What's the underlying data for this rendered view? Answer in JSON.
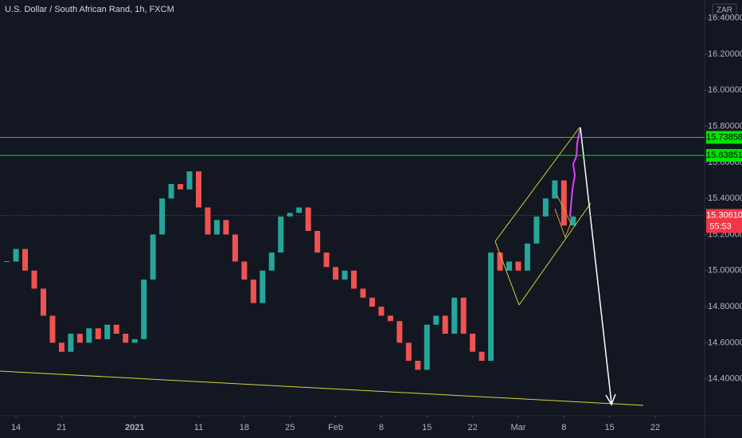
{
  "chart_data": {
    "type": "candlestick",
    "title": "U.S. Dollar / South African Rand, 1h, FXCM",
    "currency": "ZAR",
    "up_color": "#26a69a",
    "down_color": "#ef5350",
    "x": [
      -1,
      0,
      1,
      2,
      3,
      4,
      5,
      6,
      7,
      8,
      9,
      10,
      11,
      12,
      13,
      14,
      15,
      16,
      17,
      18,
      19,
      20,
      21,
      22,
      23,
      24,
      25,
      26,
      27,
      28,
      29,
      30,
      31,
      32,
      33,
      34,
      35,
      36,
      37,
      38,
      39,
      40,
      41,
      42,
      43,
      44,
      45,
      46,
      47,
      48,
      49,
      50,
      51,
      52,
      53,
      54,
      55,
      56,
      57,
      58,
      59,
      60,
      61
    ],
    "values": [
      15.05,
      15.12,
      15.0,
      14.9,
      14.75,
      14.6,
      14.55,
      14.65,
      14.6,
      14.68,
      14.62,
      14.7,
      14.65,
      14.6,
      14.62,
      14.95,
      15.2,
      15.4,
      15.48,
      15.45,
      15.55,
      15.35,
      15.2,
      15.28,
      15.2,
      15.05,
      14.95,
      14.82,
      15.0,
      15.1,
      15.3,
      15.32,
      15.35,
      15.22,
      15.1,
      15.02,
      14.95,
      15.0,
      14.9,
      14.85,
      14.8,
      14.75,
      14.72,
      14.6,
      14.5,
      14.45,
      14.7,
      14.75,
      14.65,
      14.85,
      14.65,
      14.55,
      14.5,
      15.1,
      15.0,
      15.05,
      15.0,
      15.15,
      15.3,
      15.4,
      15.5,
      15.25,
      15.3
    ],
    "xlim": [
      -1.75,
      75.4
    ],
    "xticks": [
      {
        "value": 0,
        "label": "14"
      },
      {
        "value": 5,
        "label": "21"
      },
      {
        "value": 13,
        "label": "2021"
      },
      {
        "value": 20,
        "label": "11"
      },
      {
        "value": 25,
        "label": "18"
      },
      {
        "value": 30,
        "label": "25"
      },
      {
        "value": 35,
        "label": "Feb"
      },
      {
        "value": 40,
        "label": "8"
      },
      {
        "value": 45,
        "label": "15"
      },
      {
        "value": 50,
        "label": "22"
      },
      {
        "value": 55,
        "label": "Mar"
      },
      {
        "value": 60,
        "label": "8"
      },
      {
        "value": 65,
        "label": "15"
      },
      {
        "value": 70,
        "label": "22"
      }
    ],
    "ylim": [
      14.2,
      16.5
    ],
    "yticks": [
      {
        "value": 14.4,
        "label": "14.40000"
      },
      {
        "value": 14.6,
        "label": "14.60000"
      },
      {
        "value": 14.8,
        "label": "14.80000"
      },
      {
        "value": 15.0,
        "label": "15.00000"
      },
      {
        "value": 15.2,
        "label": "15.20000"
      },
      {
        "value": 15.4,
        "label": "15.40000"
      },
      {
        "value": 15.6,
        "label": "15.60000"
      },
      {
        "value": 15.8,
        "label": "15.80000"
      },
      {
        "value": 16.0,
        "label": "16.00000"
      },
      {
        "value": 16.2,
        "label": "16.20000"
      },
      {
        "value": 16.4,
        "label": "16.40000"
      }
    ],
    "levels": [
      {
        "value": 15.73858,
        "label": "15.73858",
        "color": "#00e600"
      },
      {
        "value": 15.63851,
        "label": "15.63851",
        "color": "#00e600"
      }
    ],
    "last_price": {
      "value": 15.3061,
      "label": "15.30610",
      "color": "#f23645"
    },
    "countdown": "55:53"
  }
}
